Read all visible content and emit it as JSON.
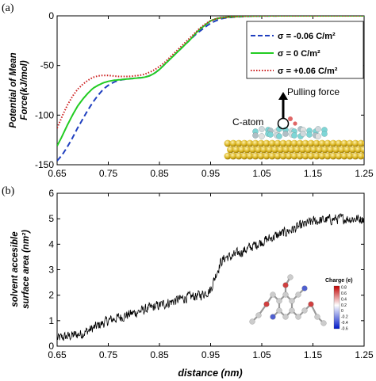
{
  "colors": {
    "series_a": "#1f3fbf",
    "series_b": "#22cc22",
    "series_c": "#cc1f1f",
    "gold": "#d8b21e"
  },
  "chart_data": [
    {
      "panel_label": "(a)",
      "type": "line",
      "xlabel": "",
      "ylabel": [
        "Potential of Mean",
        "Force(kJ/mol)"
      ],
      "xlim": [
        0.65,
        1.25
      ],
      "ylim": [
        -150,
        0
      ],
      "xticks": [
        "0.65",
        "0.75",
        "0.85",
        "0.95",
        "1.05",
        "1.15",
        "1.25"
      ],
      "yticks": [
        "-150",
        "-100",
        "-50",
        "0"
      ],
      "legend_position": "top-right",
      "series": [
        {
          "name": "σ = -0.06 C/m²",
          "color": "#1f3fbf",
          "style": "dashed",
          "x": [
            0.65,
            0.66,
            0.67,
            0.68,
            0.69,
            0.7,
            0.71,
            0.72,
            0.73,
            0.74,
            0.75,
            0.76,
            0.77,
            0.78,
            0.79,
            0.8,
            0.81,
            0.82,
            0.83,
            0.84,
            0.85,
            0.86,
            0.87,
            0.88,
            0.89,
            0.9,
            0.91,
            0.92,
            0.93,
            0.94,
            0.95,
            0.96,
            0.97,
            0.98,
            0.99,
            1.0,
            1.01,
            1.02,
            1.03,
            1.04,
            1.05,
            1.1,
            1.15,
            1.2,
            1.25
          ],
          "y": [
            -146,
            -140,
            -132,
            -123,
            -113,
            -104,
            -95,
            -87,
            -80,
            -74,
            -70,
            -67,
            -65,
            -64,
            -63.5,
            -63,
            -62.5,
            -62,
            -60.5,
            -58,
            -54,
            -49,
            -44,
            -39,
            -34,
            -29,
            -24,
            -19,
            -15,
            -11,
            -7.5,
            -5,
            -3,
            -2,
            -1.5,
            -1,
            -0.8,
            -0.5,
            -0.3,
            -0.2,
            -0.1,
            0,
            0,
            0,
            0
          ]
        },
        {
          "name": "σ = 0 C/m²",
          "color": "#22cc22",
          "style": "solid",
          "x": [
            0.65,
            0.66,
            0.67,
            0.68,
            0.69,
            0.7,
            0.71,
            0.72,
            0.73,
            0.74,
            0.75,
            0.76,
            0.77,
            0.78,
            0.79,
            0.8,
            0.81,
            0.82,
            0.83,
            0.84,
            0.85,
            0.86,
            0.87,
            0.88,
            0.89,
            0.9,
            0.91,
            0.92,
            0.93,
            0.94,
            0.95,
            0.96,
            0.97,
            0.98,
            0.99,
            1.0,
            1.01,
            1.02,
            1.03,
            1.04,
            1.05,
            1.1,
            1.15,
            1.2,
            1.25
          ],
          "y": [
            -131,
            -121,
            -110,
            -100,
            -91,
            -84,
            -78,
            -73,
            -70,
            -67.5,
            -66,
            -65,
            -64.5,
            -64,
            -63.5,
            -63,
            -62.5,
            -62,
            -60.5,
            -58,
            -54,
            -49,
            -44,
            -39,
            -34,
            -29,
            -24,
            -18,
            -13,
            -9,
            -5,
            -3,
            -2,
            -1.5,
            -1,
            -0.8,
            -0.5,
            -0.3,
            -0.2,
            -0.1,
            0,
            0,
            0,
            0,
            0
          ]
        },
        {
          "name": "σ = +0.06 C/m²",
          "color": "#cc1f1f",
          "style": "dotted",
          "x": [
            0.65,
            0.66,
            0.67,
            0.68,
            0.69,
            0.7,
            0.71,
            0.72,
            0.73,
            0.74,
            0.75,
            0.76,
            0.77,
            0.78,
            0.79,
            0.8,
            0.81,
            0.82,
            0.83,
            0.84,
            0.85,
            0.86,
            0.87,
            0.88,
            0.89,
            0.9,
            0.91,
            0.92,
            0.93,
            0.94,
            0.95,
            0.96,
            0.97,
            0.98,
            0.99,
            1.0,
            1.01,
            1.02,
            1.03,
            1.04,
            1.05,
            1.1,
            1.15,
            1.2,
            1.25
          ],
          "y": [
            -113,
            -101,
            -90,
            -81,
            -74,
            -69,
            -65,
            -62,
            -60.5,
            -60,
            -60,
            -60.5,
            -61,
            -61,
            -61,
            -60.5,
            -60,
            -59,
            -57,
            -54.5,
            -51,
            -47,
            -42,
            -37,
            -32,
            -27,
            -22,
            -17,
            -12,
            -8,
            -5,
            -3,
            -2,
            -1.5,
            -1,
            -0.8,
            -0.5,
            -0.3,
            -0.2,
            -0.1,
            0,
            0,
            0,
            0,
            0
          ]
        }
      ],
      "annotations": {
        "pulling_force": "Pulling force",
        "c_atom": "C-atom"
      }
    },
    {
      "panel_label": "(b)",
      "type": "line",
      "xlabel": "distance (nm)",
      "ylabel": [
        "solvent accesible",
        "surface area (nm²)"
      ],
      "xlim": [
        0.65,
        1.25
      ],
      "ylim": [
        0,
        6
      ],
      "xticks": [
        "0.65",
        "0.75",
        "0.85",
        "0.95",
        "1.05",
        "1.15",
        "1.25"
      ],
      "yticks": [
        "0",
        "1",
        "2",
        "3",
        "4",
        "5",
        "6"
      ],
      "series": [
        {
          "name": "",
          "color": "#000000",
          "style": "solid",
          "x": [
            0.65,
            0.7,
            0.75,
            0.8,
            0.85,
            0.9,
            0.93,
            0.95,
            0.96,
            0.97,
            0.98,
            0.99,
            1.0,
            1.05,
            1.1,
            1.15,
            1.2,
            1.25
          ],
          "y": [
            0.3,
            0.5,
            1.0,
            1.3,
            1.6,
            1.9,
            2.0,
            2.2,
            2.8,
            3.3,
            3.5,
            3.5,
            3.6,
            4.1,
            4.5,
            4.9,
            5.0,
            5.0
          ],
          "noise": 0.18
        }
      ],
      "inset_colorbar": {
        "title": "Charge (e)",
        "labels": [
          "0.8",
          "0.6",
          "0.4",
          "0.2",
          "0",
          "-0.2",
          "-0.4",
          "-0.6"
        ]
      }
    }
  ]
}
